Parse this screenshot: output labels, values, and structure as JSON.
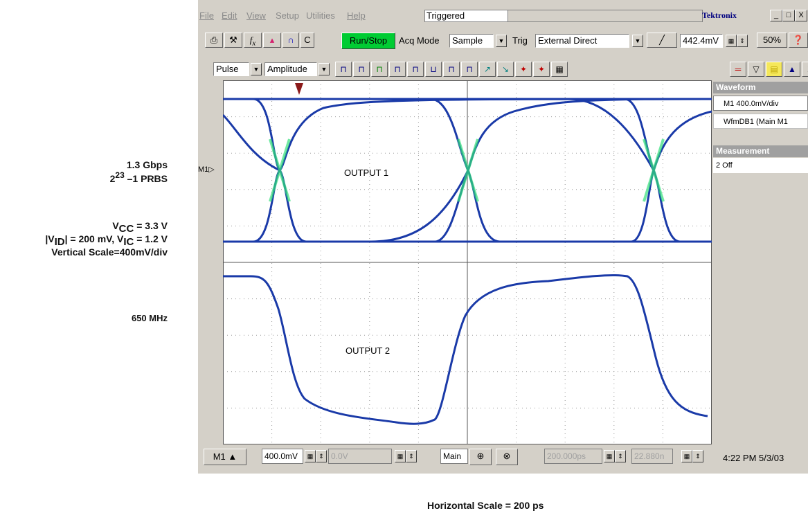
{
  "annotations": {
    "bitrate": "1.3 Gbps",
    "prbs_base": "2",
    "prbs_exp": "23",
    "prbs_rest": " –1 PRBS",
    "vcc_prefix": "V",
    "vcc_sub": "CC",
    "vcc_value": " = 3.3 V",
    "vid_prefix": "|V",
    "vid_sub": "ID",
    "vid_mid": "| = 200 mV, V",
    "vic_sub": "IC",
    "vic_value": " = 1.2 V",
    "vertical_scale": "Vertical Scale=400mV/div",
    "frequency": "650 MHz",
    "horizontal_scale": "Horizontal Scale = 200 ps"
  },
  "menubar": {
    "items": [
      "File",
      "Edit",
      "View",
      "Setup",
      "Utilities",
      "Help"
    ],
    "status": "Triggered",
    "brand": "Tektronix",
    "window_buttons": [
      "_",
      "□",
      "X"
    ]
  },
  "toolbar": {
    "run_stop": "Run/Stop",
    "acq_mode_label": "Acq Mode",
    "acq_mode_value": "Sample",
    "trig_label": "Trig",
    "trig_value": "External Direct",
    "trig_level": "442.4mV",
    "percent": "50%",
    "c_button": "C"
  },
  "toolbar2": {
    "measure_type": "Pulse",
    "measure_param": "Amplitude"
  },
  "display": {
    "output1_label": "OUTPUT 1",
    "output2_label": "OUTPUT 2",
    "channel_marker": "M1"
  },
  "panel": {
    "waveform_header": "Waveform",
    "waveform_item1": "M1 400.0mV/div",
    "waveform_item2": "WfmDB1 (Main M1",
    "measurement_header": "Measurement",
    "measurement_item1": "2 Off"
  },
  "bottombar": {
    "channel": "M1",
    "scale": "400.0mV",
    "offset": "0.0V",
    "timebase_mode": "Main",
    "timebase": "200.000ps",
    "position": "22.880n",
    "datetime": "4:22 PM 5/3/03"
  },
  "colors": {
    "eye_trace": "#1a3aa8",
    "crossing_highlight": "#33e07a",
    "run_stop": "#00cc33",
    "brand": "#000080"
  }
}
